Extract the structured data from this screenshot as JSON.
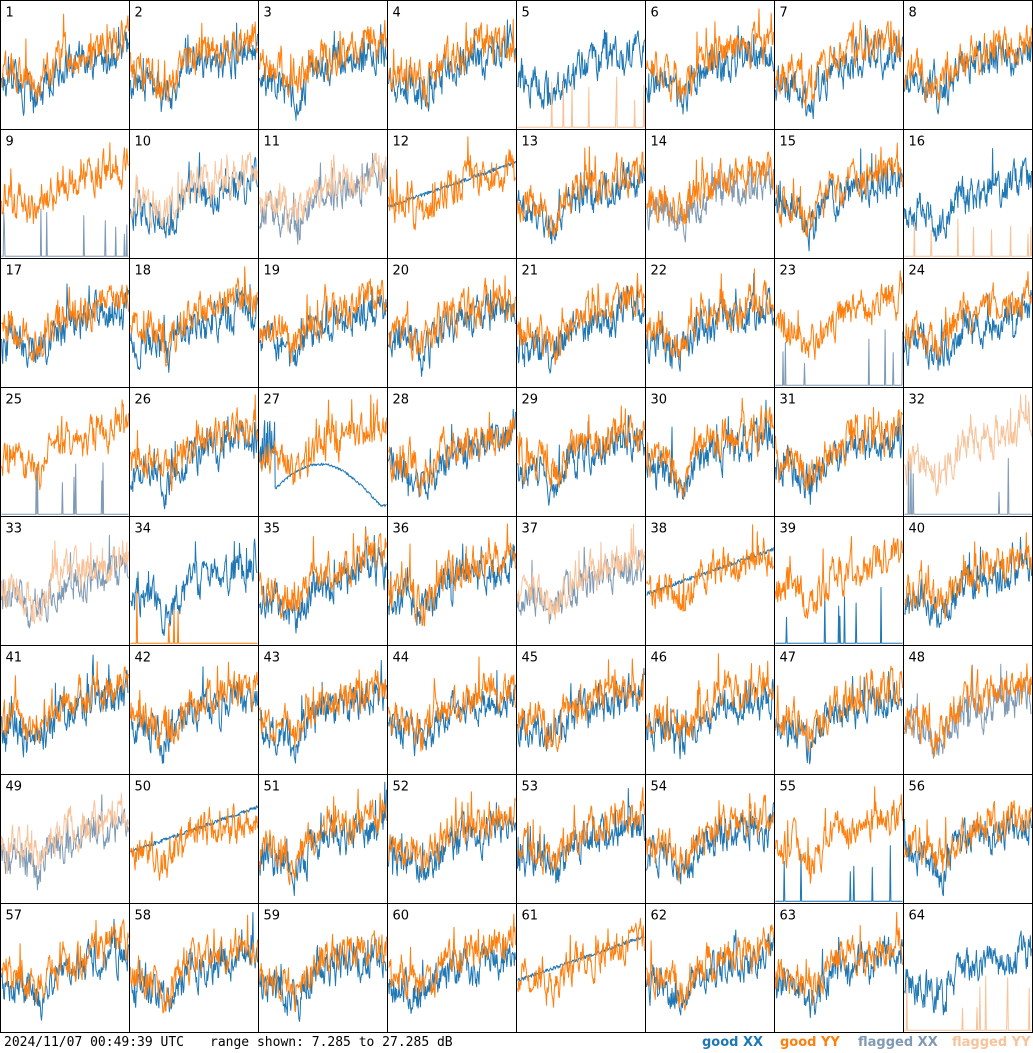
{
  "chart_data": {
    "type": "line",
    "grid": {
      "rows": 8,
      "cols": 8
    },
    "panels": [
      "1",
      "2",
      "3",
      "4",
      "5",
      "6",
      "7",
      "8",
      "9",
      "10",
      "11",
      "12",
      "13",
      "14",
      "15",
      "16",
      "17",
      "18",
      "19",
      "20",
      "21",
      "22",
      "23",
      "24",
      "25",
      "26",
      "27",
      "28",
      "29",
      "30",
      "31",
      "32",
      "33",
      "34",
      "35",
      "36",
      "37",
      "38",
      "39",
      "40",
      "41",
      "42",
      "43",
      "44",
      "45",
      "46",
      "47",
      "48",
      "49",
      "50",
      "51",
      "52",
      "53",
      "54",
      "55",
      "56",
      "57",
      "58",
      "59",
      "60",
      "61",
      "62",
      "63",
      "64"
    ],
    "ylim": [
      7.285,
      27.285
    ],
    "range_text": "range shown: 7.285 to 27.285 dB",
    "legend": [
      {
        "key": "goodXX",
        "label": "good XX",
        "color": "#1f77b4"
      },
      {
        "key": "goodYY",
        "label": "good YY",
        "color": "#ff7f0e"
      },
      {
        "key": "flaggedXX",
        "label": "flagged XX",
        "color": "#7f9ab5"
      },
      {
        "key": "flaggedYY",
        "label": "flagged YY",
        "color": "#f7c39a"
      }
    ],
    "panel_styles": {
      "5": {
        "x": "good",
        "y": "spikes"
      },
      "9": {
        "x": "spikes",
        "y": "good"
      },
      "10": {
        "x": "good",
        "y": "flagged"
      },
      "11": {
        "x": "flagged",
        "y": "flagged"
      },
      "12": {
        "x": "quiet",
        "y": "good"
      },
      "14": {
        "x": "flagged",
        "y": "good"
      },
      "16": {
        "x": "good",
        "y": "spikes"
      },
      "23": {
        "x": "spikes",
        "y": "good"
      },
      "25": {
        "x": "spikes",
        "y": "good"
      },
      "27": {
        "x": "arc",
        "y": "good"
      },
      "32": {
        "x": "spikes",
        "y": "flagged"
      },
      "33": {
        "x": "flagged",
        "y": "flagged"
      },
      "34": {
        "x": "good",
        "y": "spikes"
      },
      "37": {
        "x": "flagged",
        "y": "flagged"
      },
      "38": {
        "x": "quiet",
        "y": "good"
      },
      "39": {
        "x": "spikes",
        "y": "good"
      },
      "48": {
        "x": "flagged",
        "y": "good"
      },
      "49": {
        "x": "flagged",
        "y": "flagged"
      },
      "50": {
        "x": "quiet",
        "y": "good"
      },
      "55": {
        "x": "spikes",
        "y": "good"
      },
      "61": {
        "x": "quiet",
        "y": "good"
      },
      "64": {
        "x": "good",
        "y": "spikes"
      }
    }
  },
  "footer": {
    "timestamp": "2024/11/07 00:49:39 UTC"
  }
}
